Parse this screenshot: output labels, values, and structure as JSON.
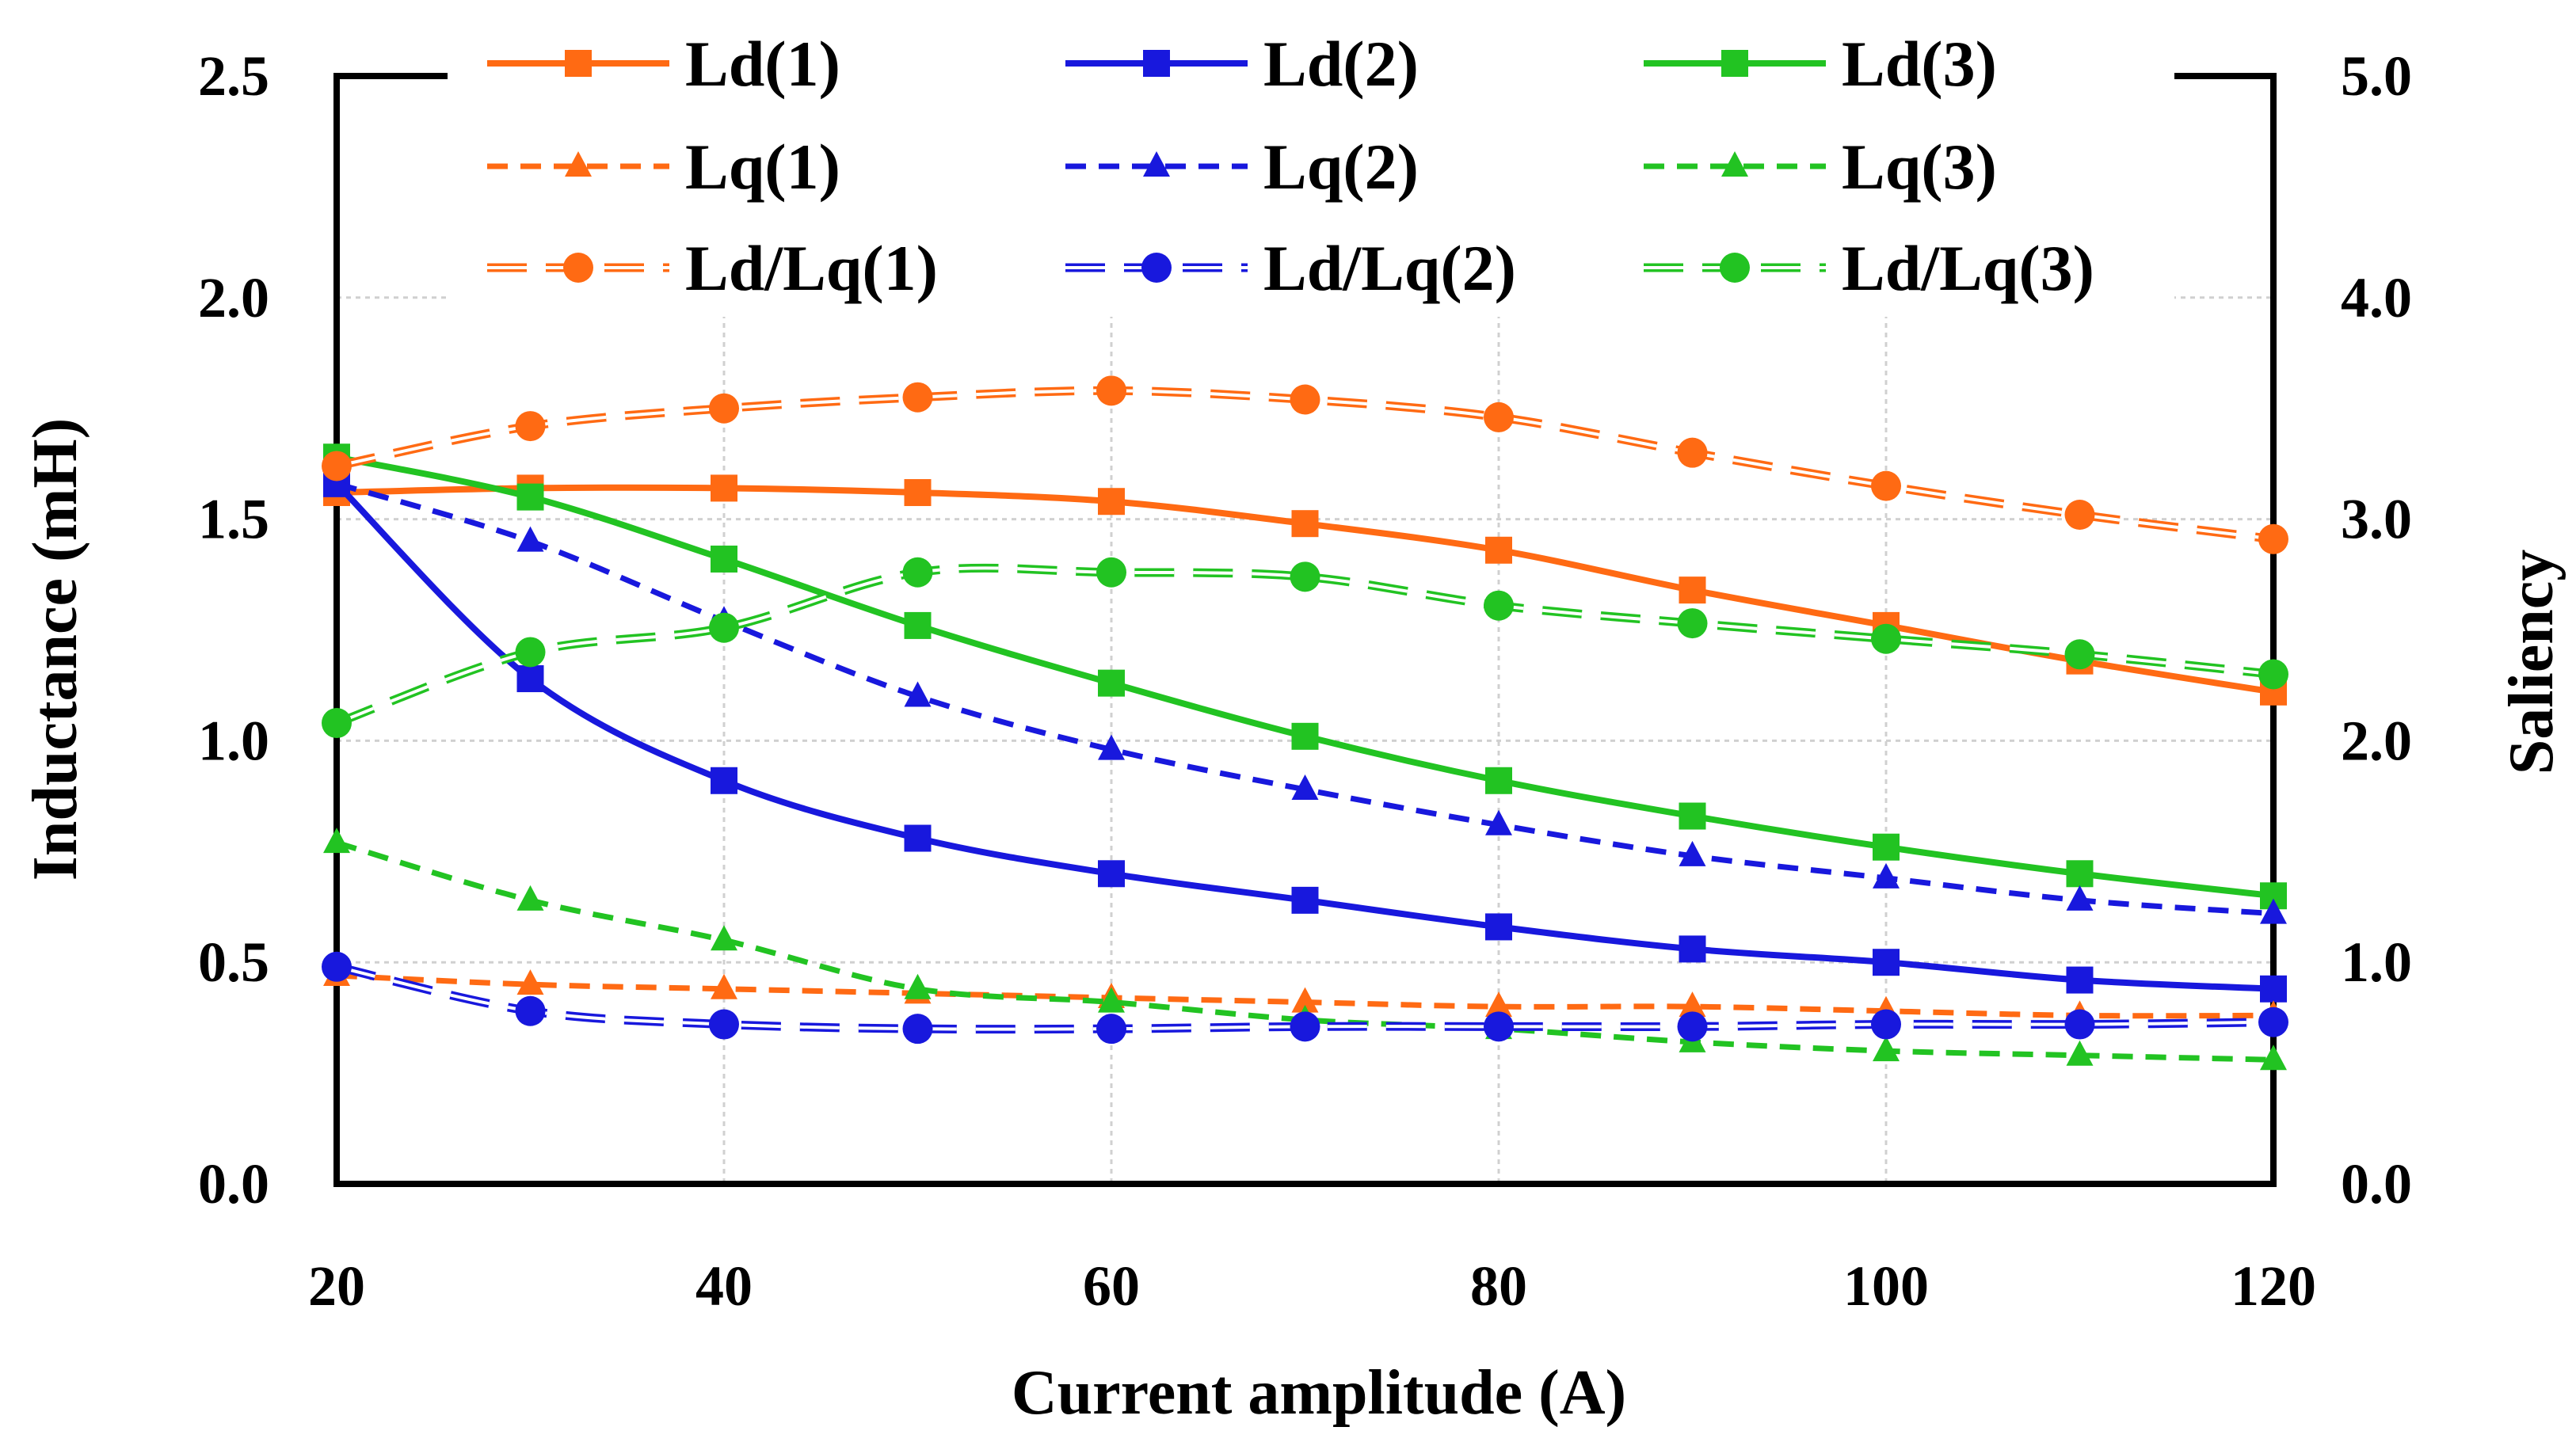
{
  "chart_data": {
    "type": "line",
    "title": "",
    "xlabel": "Current amplitude (A)",
    "ylabel_left": "Inductance (mH)",
    "ylabel_right": "Saliency",
    "x": [
      20,
      30,
      40,
      50,
      60,
      70,
      80,
      90,
      100,
      110,
      120
    ],
    "xlim": [
      20,
      120
    ],
    "ylim_left": [
      0,
      2.5
    ],
    "ylim_right": [
      0,
      5
    ],
    "x_ticks": [
      "20",
      "40",
      "60",
      "80",
      "100",
      "120"
    ],
    "y_ticks_left": [
      "0.0",
      "0.5",
      "1.0",
      "1.5",
      "2.0",
      "2.5"
    ],
    "y_ticks_right": [
      "0.0",
      "1.0",
      "2.0",
      "3.0",
      "4.0",
      "5.0"
    ],
    "grid": true,
    "legend_position": "top",
    "colors": {
      "s1": "#ff6a13",
      "s2": "#1818dd",
      "s3": "#22c322",
      "axis": "#000000",
      "grid": "#d0d0d0"
    },
    "series": [
      {
        "name": "Ld(1)",
        "axis": "left",
        "color": "#ff6a13",
        "style": "solid",
        "marker": "square",
        "values": [
          1.56,
          1.57,
          1.57,
          1.56,
          1.54,
          1.49,
          1.43,
          1.34,
          1.26,
          1.18,
          1.11
        ]
      },
      {
        "name": "Ld(2)",
        "axis": "left",
        "color": "#1818dd",
        "style": "solid",
        "marker": "square",
        "values": [
          1.58,
          1.14,
          0.91,
          0.78,
          0.7,
          0.64,
          0.58,
          0.53,
          0.5,
          0.46,
          0.44
        ]
      },
      {
        "name": "Ld(3)",
        "axis": "left",
        "color": "#22c322",
        "style": "solid",
        "marker": "square",
        "values": [
          1.64,
          1.55,
          1.41,
          1.26,
          1.13,
          1.01,
          0.91,
          0.83,
          0.76,
          0.7,
          0.65
        ]
      },
      {
        "name": "Lq(1)",
        "axis": "left",
        "color": "#ff6a13",
        "style": "dashed",
        "marker": "triangle",
        "values": [
          0.47,
          0.45,
          0.44,
          0.43,
          0.42,
          0.41,
          0.4,
          0.4,
          0.39,
          0.38,
          0.38
        ]
      },
      {
        "name": "Lq(2)",
        "axis": "left",
        "color": "#1818dd",
        "style": "dashed",
        "marker": "triangle",
        "values": [
          1.58,
          1.45,
          1.27,
          1.1,
          0.98,
          0.89,
          0.81,
          0.74,
          0.69,
          0.64,
          0.61
        ]
      },
      {
        "name": "Lq(3)",
        "axis": "left",
        "color": "#22c322",
        "style": "dashed",
        "marker": "triangle",
        "values": [
          0.77,
          0.64,
          0.55,
          0.44,
          0.41,
          0.37,
          0.35,
          0.32,
          0.3,
          0.29,
          0.28
        ]
      },
      {
        "name": "Ld/Lq(1)",
        "axis": "right",
        "color": "#ff6a13",
        "style": "double-dash",
        "marker": "circle",
        "values": [
          3.24,
          3.42,
          3.5,
          3.55,
          3.58,
          3.54,
          3.46,
          3.3,
          3.15,
          3.02,
          2.91
        ]
      },
      {
        "name": "Ld/Lq(2)",
        "axis": "right",
        "color": "#1818dd",
        "style": "double-dash",
        "marker": "circle",
        "values": [
          0.98,
          0.78,
          0.72,
          0.7,
          0.7,
          0.71,
          0.71,
          0.71,
          0.72,
          0.72,
          0.73
        ]
      },
      {
        "name": "Ld/Lq(3)",
        "axis": "right",
        "color": "#22c322",
        "style": "double-dash",
        "marker": "circle",
        "values": [
          2.08,
          2.4,
          2.51,
          2.76,
          2.76,
          2.74,
          2.61,
          2.53,
          2.46,
          2.39,
          2.3
        ]
      }
    ]
  }
}
